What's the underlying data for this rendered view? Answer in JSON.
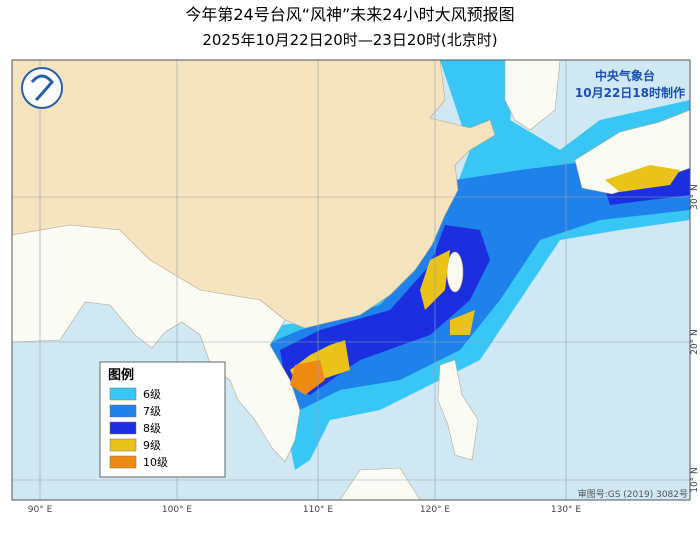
{
  "header": {
    "title": "今年第24号台风“风神”未来24小时大风预报图",
    "subtitle": "2025年10月22日20时—23日20时(北京时)"
  },
  "agency": {
    "name": "中央气象台",
    "issued": "10月22日18时制作"
  },
  "legend": {
    "title": "图例",
    "items": [
      {
        "label": "6级",
        "color": "#38c6f4"
      },
      {
        "label": "7级",
        "color": "#1f82ea"
      },
      {
        "label": "8级",
        "color": "#1b2fe0"
      },
      {
        "label": "9级",
        "color": "#e9c21a"
      },
      {
        "label": "10级",
        "color": "#ee8a12"
      }
    ]
  },
  "map": {
    "lon_labels": [
      "90° E",
      "100° E",
      "110° E",
      "120° E",
      "130° E"
    ],
    "lat_labels": [
      "30° N",
      "20° N",
      "10° N"
    ]
  },
  "footer": {
    "approval": "审图号:GS (2019) 3082号"
  }
}
